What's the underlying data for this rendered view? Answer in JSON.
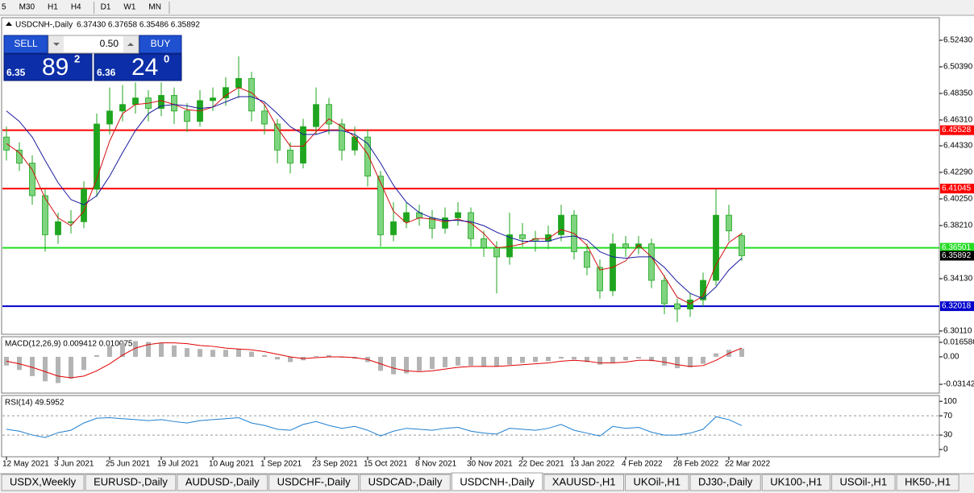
{
  "toolbar": {
    "timeframes": [
      "5",
      "M30",
      "H1",
      "H4",
      "D1",
      "W1",
      "MN"
    ]
  },
  "trade_panel": {
    "sell": "SELL",
    "volume": "0.50",
    "buy": "BUY",
    "sell_price": {
      "big": "6.35",
      "pips": "89",
      "fraction": "2"
    },
    "buy_price": {
      "big": "6.36",
      "pips": "24",
      "fraction": "0"
    }
  },
  "chart_data": {
    "type": "candlestick",
    "title": "USDCNH-,Daily",
    "ohlc_label": "6.37430 6.37658 6.35486 6.35892",
    "categories": [
      "12 May 2021",
      null,
      null,
      null,
      "3 Jun 2021",
      null,
      null,
      null,
      "25 Jun 2021",
      null,
      null,
      null,
      "19 Jul 2021",
      null,
      null,
      null,
      "10 Aug 2021",
      null,
      null,
      null,
      "1 Sep 2021",
      null,
      null,
      null,
      "23 Sep 2021",
      null,
      null,
      null,
      "15 Oct 2021",
      null,
      null,
      null,
      "8 Nov 2021",
      null,
      null,
      null,
      "30 Nov 2021",
      null,
      null,
      null,
      "22 Dec 2021",
      null,
      null,
      null,
      "13 Jan 2022",
      null,
      null,
      null,
      "4 Feb 2022",
      null,
      null,
      null,
      "28 Feb 2022",
      null,
      null,
      null,
      "22 Mar 2022",
      null
    ],
    "open": [
      6.45,
      6.44,
      6.43,
      6.405,
      6.375,
      6.385,
      6.385,
      6.41,
      6.46,
      6.47,
      6.475,
      6.48,
      6.472,
      6.482,
      6.47,
      6.462,
      6.478,
      6.48,
      6.488,
      6.495,
      6.47,
      6.46,
      6.44,
      6.43,
      6.458,
      6.475,
      6.46,
      6.44,
      6.45,
      6.42,
      6.375,
      6.385,
      6.392,
      6.388,
      6.38,
      6.388,
      6.392,
      6.372,
      6.365,
      6.358,
      6.375,
      6.372,
      6.37,
      6.375,
      6.39,
      6.362,
      6.35,
      6.332,
      6.368,
      6.365,
      6.368,
      6.34,
      6.322,
      6.318,
      6.325,
      6.34,
      6.39,
      6.3743
    ],
    "high": [
      6.458,
      6.446,
      6.436,
      6.41,
      6.392,
      6.394,
      6.416,
      6.468,
      6.488,
      6.49,
      6.492,
      6.486,
      6.492,
      6.488,
      6.476,
      6.486,
      6.488,
      6.496,
      6.512,
      6.5,
      6.476,
      6.464,
      6.446,
      6.464,
      6.488,
      6.48,
      6.464,
      6.458,
      6.456,
      6.424,
      6.4,
      6.4,
      6.398,
      6.394,
      6.396,
      6.4,
      6.396,
      6.378,
      6.37,
      6.392,
      6.384,
      6.378,
      6.382,
      6.398,
      6.394,
      6.368,
      6.356,
      6.376,
      6.374,
      6.374,
      6.372,
      6.344,
      6.326,
      6.33,
      6.346,
      6.41,
      6.398,
      6.37658
    ],
    "low": [
      6.432,
      6.424,
      6.398,
      6.362,
      6.368,
      6.376,
      6.38,
      6.404,
      6.452,
      6.462,
      6.468,
      6.462,
      6.466,
      6.46,
      6.454,
      6.458,
      6.47,
      6.474,
      6.48,
      6.462,
      6.452,
      6.43,
      6.422,
      6.426,
      6.452,
      6.452,
      6.432,
      6.436,
      6.412,
      6.366,
      6.37,
      6.38,
      6.382,
      6.372,
      6.376,
      6.382,
      6.366,
      6.358,
      6.33,
      6.352,
      6.366,
      6.362,
      6.364,
      6.37,
      6.356,
      6.344,
      6.326,
      6.328,
      6.358,
      6.36,
      6.334,
      6.314,
      6.308,
      6.312,
      6.32,
      6.336,
      6.37,
      6.35486
    ],
    "close": [
      6.44,
      6.43,
      6.405,
      6.375,
      6.385,
      6.385,
      6.41,
      6.46,
      6.47,
      6.475,
      6.48,
      6.472,
      6.482,
      6.47,
      6.462,
      6.478,
      6.48,
      6.488,
      6.495,
      6.47,
      6.46,
      6.44,
      6.43,
      6.458,
      6.475,
      6.46,
      6.44,
      6.45,
      6.42,
      6.375,
      6.385,
      6.392,
      6.388,
      6.38,
      6.388,
      6.392,
      6.372,
      6.365,
      6.358,
      6.375,
      6.372,
      6.37,
      6.375,
      6.39,
      6.362,
      6.35,
      6.332,
      6.368,
      6.365,
      6.368,
      6.34,
      6.322,
      6.318,
      6.325,
      6.34,
      6.39,
      6.378,
      6.35892
    ],
    "up_color": "#1fa51f",
    "down_color": "#7fd47f",
    "moving_averages": [
      {
        "color": "#d01010",
        "values": [
          6.445,
          6.438,
          6.425,
          6.403,
          6.388,
          6.382,
          6.393,
          6.418,
          6.447,
          6.468,
          6.475,
          6.476,
          6.478,
          6.475,
          6.471,
          6.47,
          6.473,
          6.482,
          6.488,
          6.484,
          6.475,
          6.457,
          6.443,
          6.443,
          6.454,
          6.464,
          6.458,
          6.45,
          6.437,
          6.415,
          6.393,
          6.384,
          6.388,
          6.387,
          6.385,
          6.387,
          6.384,
          6.376,
          6.365,
          6.366,
          6.368,
          6.372,
          6.372,
          6.379,
          6.376,
          6.367,
          6.348,
          6.35,
          6.355,
          6.367,
          6.358,
          6.343,
          6.327,
          6.322,
          6.328,
          6.352,
          6.369,
          6.376
        ]
      },
      {
        "color": "#1a1aa0",
        "values": [
          6.47,
          6.462,
          6.45,
          6.432,
          6.415,
          6.402,
          6.398,
          6.405,
          6.42,
          6.438,
          6.455,
          6.468,
          6.474,
          6.475,
          6.474,
          6.472,
          6.473,
          6.477,
          6.481,
          6.481,
          6.477,
          6.468,
          6.458,
          6.452,
          6.452,
          6.455,
          6.455,
          6.452,
          6.445,
          6.43,
          6.413,
          6.4,
          6.392,
          6.388,
          6.386,
          6.386,
          6.385,
          6.382,
          6.377,
          6.373,
          6.37,
          6.37,
          6.37,
          6.373,
          6.374,
          6.371,
          6.362,
          6.358,
          6.357,
          6.358,
          6.358,
          6.35,
          6.339,
          6.33,
          6.326,
          6.335,
          6.348,
          6.357
        ]
      }
    ],
    "levels": [
      {
        "value": 6.45528,
        "color": "#ff0000"
      },
      {
        "value": 6.41045,
        "color": "#ff0000"
      },
      {
        "value": 6.36501,
        "color": "#22dd22"
      },
      {
        "value": 6.32018,
        "color": "#0000cc"
      }
    ],
    "price_label": 6.35892,
    "ylim": [
      6.2986,
      6.5416
    ],
    "yticks": [
      {
        "value": 6.5243,
        "label": "6.52430"
      },
      {
        "value": 6.5039,
        "label": "6.50390"
      },
      {
        "value": 6.4835,
        "label": "6.48350"
      },
      {
        "value": 6.4631,
        "label": "6.46310"
      },
      {
        "value": 6.4433,
        "label": "6.44330"
      },
      {
        "value": 6.4229,
        "label": "6.42290"
      },
      {
        "value": 6.4025,
        "label": "6.40250"
      },
      {
        "value": 6.3821,
        "label": "6.38210"
      },
      {
        "value": 6.3413,
        "label": "6.34130"
      },
      {
        "value": 6.3011,
        "label": "6.30110"
      }
    ],
    "macd": {
      "label": "MACD(12,26,9) 0.009412 0.010075",
      "bar_color": "#b4b4b4",
      "signal_color": "#e00000",
      "histogram": [
        -0.01,
        -0.015,
        -0.022,
        -0.028,
        -0.03,
        -0.025,
        -0.015,
        0.002,
        0.012,
        0.016,
        0.018,
        0.017,
        0.016,
        0.013,
        0.01,
        0.009,
        0.008,
        0.008,
        0.009,
        0.006,
        0.002,
        -0.003,
        -0.006,
        -0.004,
        0.001,
        0.002,
        -0.001,
        -0.002,
        -0.006,
        -0.016,
        -0.02,
        -0.019,
        -0.016,
        -0.014,
        -0.012,
        -0.01,
        -0.01,
        -0.011,
        -0.011,
        -0.009,
        -0.007,
        -0.006,
        -0.005,
        -0.002,
        -0.003,
        -0.006,
        -0.009,
        -0.007,
        -0.004,
        -0.002,
        -0.005,
        -0.01,
        -0.013,
        -0.012,
        -0.008,
        0.004,
        0.008,
        0.009412
      ],
      "signal": [
        -0.005,
        -0.008,
        -0.012,
        -0.017,
        -0.022,
        -0.024,
        -0.022,
        -0.016,
        -0.008,
        0.002,
        0.01,
        0.014,
        0.016,
        0.016,
        0.015,
        0.013,
        0.012,
        0.01,
        0.009,
        0.008,
        0.006,
        0.003,
        0,
        -0.002,
        -0.001,
        0,
        0,
        -0.001,
        -0.003,
        -0.008,
        -0.013,
        -0.016,
        -0.017,
        -0.016,
        -0.014,
        -0.012,
        -0.011,
        -0.011,
        -0.011,
        -0.01,
        -0.009,
        -0.008,
        -0.007,
        -0.005,
        -0.004,
        -0.005,
        -0.007,
        -0.007,
        -0.006,
        -0.004,
        -0.004,
        -0.006,
        -0.009,
        -0.011,
        -0.01,
        -0.004,
        0.004,
        0.010075
      ],
      "ylim": [
        -0.0415,
        0.023
      ],
      "yticks": [
        0.016586,
        {
          "value": 0,
          "label": "0.00"
        },
        -0.031421
      ]
    },
    "rsi": {
      "label": "RSI(14) 49.5952",
      "color": "#1e7fd0",
      "values": [
        42,
        38,
        30,
        25,
        35,
        40,
        55,
        65,
        66,
        64,
        62,
        60,
        62,
        58,
        55,
        60,
        62,
        64,
        66,
        55,
        50,
        42,
        40,
        52,
        58,
        50,
        44,
        48,
        40,
        28,
        38,
        44,
        42,
        40,
        44,
        46,
        38,
        34,
        32,
        44,
        42,
        40,
        44,
        52,
        40,
        34,
        28,
        48,
        44,
        46,
        36,
        30,
        30,
        34,
        42,
        68,
        62,
        49.5952
      ],
      "ylim": [
        -15,
        112
      ],
      "yticks": [
        100,
        70,
        30,
        0
      ],
      "levels": [
        70,
        30
      ]
    }
  },
  "tabs": {
    "items": [
      "USDX,Weekly",
      "EURUSD-,Daily",
      "AUDUSD-,Daily",
      "USDCHF-,Daily",
      "USDCAD-,Daily",
      "USDCNH-,Daily",
      "XAUUSD-,H1",
      "UKOil-,H1",
      "DJ30-,Daily",
      "UK100-,H1",
      "USOil-,H1",
      "HK50-,H1"
    ],
    "active": "USDCNH-,Daily"
  }
}
